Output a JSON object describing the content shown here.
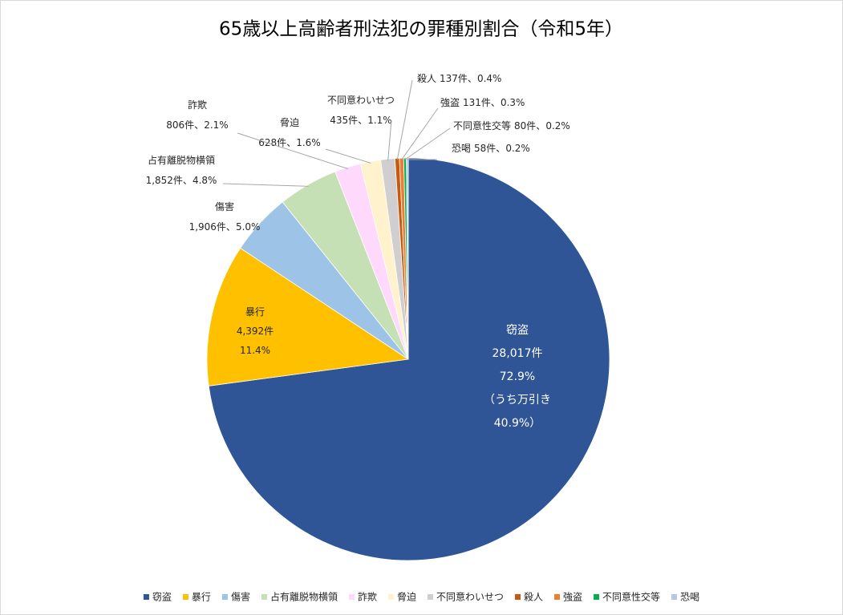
{
  "chart_data": {
    "type": "pie",
    "title": "65歳以上高齢者刑法犯の罪種別割合（令和5年）",
    "categories": [
      "窃盗",
      "暴行",
      "傷害",
      "占有離脱物横領",
      "詐欺",
      "脅迫",
      "不同意わいせつ",
      "殺人",
      "強盗",
      "不同意性交等",
      "恐喝"
    ],
    "values": [
      28017,
      4392,
      1906,
      1852,
      806,
      628,
      435,
      137,
      131,
      80,
      58
    ],
    "value_labels": [
      "28,017件",
      "4,392件",
      "1,906件",
      "1,852件",
      "806件",
      "628件",
      "435件",
      "137件",
      "131件",
      "80件",
      "58件"
    ],
    "percent_labels": [
      "72.9%",
      "11.4%",
      "5.0%",
      "4.8%",
      "2.1%",
      "1.6%",
      "1.1%",
      "0.4%",
      "0.3%",
      "0.2%",
      "0.2%"
    ],
    "label_separator": "、",
    "colors": [
      "#2f5597",
      "#ffc000",
      "#9dc3e6",
      "#c5e0b4",
      "#ffd9fb",
      "#fff2cc",
      "#d0cece",
      "#c55a11",
      "#ed7d31",
      "#00b050",
      "#b4c7e7"
    ],
    "note": {
      "text": "（うち万引き",
      "label": "40.9%）"
    },
    "legend": "bottom"
  }
}
